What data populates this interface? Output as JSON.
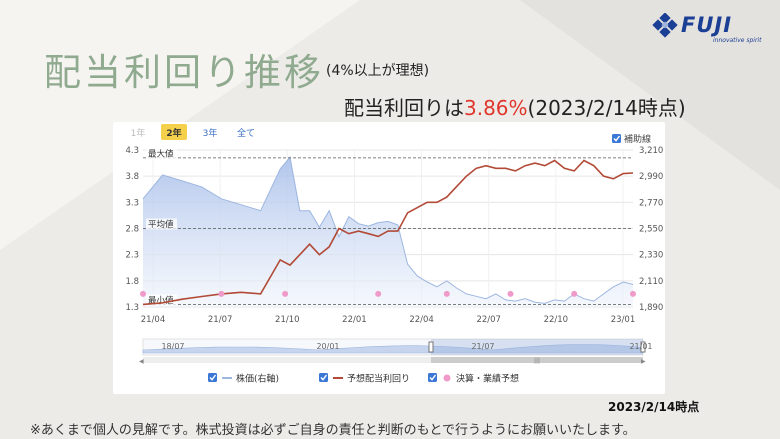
{
  "title": "配当利回り推移",
  "subtitle": "(4%以上が理想)",
  "headline": {
    "prefix": "配当利回りは",
    "value": "3.86%",
    "suffix": "(2023/2/14時点)"
  },
  "logo": {
    "name": "FUJI",
    "tagline": "innovative spirit",
    "icon": "diamond-cluster-icon",
    "color": "#1b3f95"
  },
  "range_tabs": [
    {
      "label": "1年",
      "active": false,
      "disabled": true
    },
    {
      "label": "2年",
      "active": true,
      "disabled": false
    },
    {
      "label": "3年",
      "active": false,
      "disabled": false
    },
    {
      "label": "全て",
      "active": false,
      "disabled": false
    }
  ],
  "aux_lines_toggle": {
    "label": "補助線",
    "checked": true
  },
  "navigator": {
    "labels": [
      "18/07",
      "20/01",
      "21/07",
      "21/01"
    ]
  },
  "legend": [
    {
      "label": "株価(右軸)",
      "checked": true,
      "color": "#9db6e0"
    },
    {
      "label": "予想配当利回り",
      "checked": true,
      "color": "#b24a37"
    },
    {
      "label": "決算・業績予想",
      "checked": true,
      "color": "#ef9ac8"
    }
  ],
  "date_note": "2023/2/14時点",
  "disclaimer": "※あくまで個人の見解です。株式投資は必ずご自身の責任と判断のもとで行うようにお願いいたします。",
  "colors": {
    "title": "#8faa8f",
    "highlight": "#e0362c",
    "yield_line": "#b24a37",
    "price_area": "#cfdcf3",
    "earnings_dot": "#ef9ac8",
    "active_tab": "#f4d04b"
  },
  "chart_data": {
    "type": "line",
    "x_ticks": [
      "21/04",
      "21/07",
      "21/10",
      "22/01",
      "22/04",
      "22/07",
      "22/10",
      "23/01"
    ],
    "y_left": {
      "ticks": [
        "4.3",
        "3.8",
        "3.3",
        "2.8",
        "2.3",
        "1.8",
        "1.3"
      ],
      "ylim": [
        1.3,
        4.3
      ]
    },
    "y_right": {
      "ticks": [
        "3,210",
        "2,990",
        "2,770",
        "2,550",
        "2,330",
        "2,110",
        "1,890"
      ],
      "ylim": [
        1890,
        3210
      ]
    },
    "reference_lines": [
      {
        "label": "最大値",
        "value": 4.15
      },
      {
        "label": "平均値",
        "value": 2.8
      },
      {
        "label": "最小値",
        "value": 1.35
      }
    ],
    "series": [
      {
        "name": "予想配当利回り",
        "axis": "left",
        "x": [
          0.0,
          0.04,
          0.08,
          0.12,
          0.16,
          0.2,
          0.24,
          0.28,
          0.3,
          0.32,
          0.34,
          0.36,
          0.38,
          0.4,
          0.42,
          0.44,
          0.46,
          0.48,
          0.5,
          0.52,
          0.54,
          0.56,
          0.58,
          0.6,
          0.62,
          0.64,
          0.66,
          0.68,
          0.7,
          0.72,
          0.74,
          0.76,
          0.78,
          0.8,
          0.82,
          0.84,
          0.86,
          0.88,
          0.9,
          0.92,
          0.94,
          0.96,
          0.98,
          1.0
        ],
        "values": [
          1.35,
          1.38,
          1.45,
          1.5,
          1.55,
          1.58,
          1.55,
          2.2,
          2.1,
          2.3,
          2.5,
          2.3,
          2.45,
          2.8,
          2.7,
          2.75,
          2.7,
          2.65,
          2.75,
          2.75,
          3.1,
          3.2,
          3.3,
          3.3,
          3.4,
          3.6,
          3.8,
          3.95,
          4.0,
          3.95,
          3.95,
          3.9,
          4.0,
          4.05,
          4.0,
          4.1,
          3.95,
          3.9,
          4.1,
          4.0,
          3.8,
          3.75,
          3.85,
          3.86
        ]
      },
      {
        "name": "株価(右軸)",
        "axis": "right",
        "x": [
          0.0,
          0.04,
          0.08,
          0.12,
          0.16,
          0.2,
          0.24,
          0.28,
          0.3,
          0.32,
          0.34,
          0.36,
          0.38,
          0.4,
          0.42,
          0.44,
          0.46,
          0.48,
          0.5,
          0.52,
          0.54,
          0.56,
          0.58,
          0.6,
          0.62,
          0.64,
          0.66,
          0.68,
          0.7,
          0.72,
          0.74,
          0.76,
          0.78,
          0.8,
          0.82,
          0.84,
          0.86,
          0.88,
          0.9,
          0.92,
          0.94,
          0.96,
          0.98,
          1.0
        ],
        "values": [
          2800,
          3000,
          2950,
          2900,
          2800,
          2750,
          2700,
          3050,
          3150,
          2700,
          2700,
          2560,
          2700,
          2480,
          2650,
          2590,
          2570,
          2600,
          2610,
          2580,
          2250,
          2150,
          2100,
          2060,
          2110,
          2050,
          2000,
          1980,
          1960,
          2000,
          1950,
          1940,
          1960,
          1930,
          1920,
          1950,
          1940,
          2000,
          1960,
          1940,
          2000,
          2060,
          2100,
          2080
        ]
      }
    ],
    "earnings_points_x": [
      0.0,
      0.16,
      0.29,
      0.48,
      0.62,
      0.75,
      0.88,
      1.0
    ],
    "earnings_points_value": 1.55
  }
}
